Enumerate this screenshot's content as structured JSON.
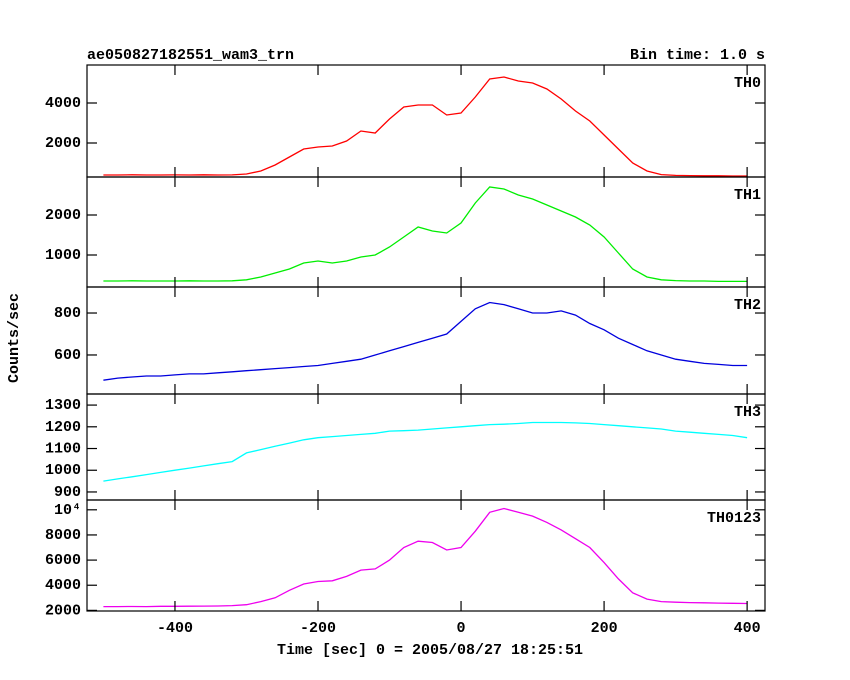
{
  "chart_data": {
    "type": "line",
    "title": "ae050827182551_wam3_trn",
    "subtitle": "Bin time: 1.0 s",
    "x_label": "Time [sec] 0 = 2005/08/27 18:25:51",
    "y_label": "Counts/sec",
    "x": [
      -500,
      -480,
      -460,
      -440,
      -420,
      -400,
      -380,
      -360,
      -340,
      -320,
      -300,
      -280,
      -260,
      -240,
      -220,
      -200,
      -180,
      -160,
      -140,
      -120,
      -100,
      -80,
      -60,
      -40,
      -20,
      0,
      20,
      40,
      60,
      80,
      100,
      120,
      140,
      160,
      180,
      200,
      220,
      240,
      260,
      280,
      300,
      320,
      340,
      360,
      380,
      400
    ],
    "xlim": [
      -523,
      425
    ],
    "xticks": [
      -400,
      -200,
      0,
      200,
      400
    ],
    "panels": [
      {
        "name": "TH0",
        "color": "#ff0000",
        "values": [
          400,
          400,
          410,
          400,
          400,
          405,
          400,
          410,
          400,
          405,
          450,
          600,
          900,
          1300,
          1700,
          1800,
          1850,
          2100,
          2600,
          2500,
          3200,
          3800,
          3900,
          3900,
          3400,
          3500,
          4300,
          5200,
          5300,
          5100,
          5000,
          4700,
          4200,
          3600,
          3100,
          2400,
          1700,
          1000,
          600,
          420,
          380,
          370,
          360,
          360,
          350,
          350
        ],
        "ylim": [
          300,
          5900
        ],
        "yticks": [
          2000,
          4000
        ]
      },
      {
        "name": "TH1",
        "color": "#00ee00",
        "values": [
          350,
          350,
          355,
          350,
          350,
          350,
          355,
          350,
          350,
          355,
          380,
          450,
          550,
          650,
          800,
          850,
          800,
          850,
          950,
          1000,
          1200,
          1450,
          1700,
          1600,
          1550,
          1800,
          2300,
          2700,
          2650,
          2500,
          2400,
          2250,
          2100,
          1950,
          1750,
          1450,
          1050,
          650,
          450,
          380,
          360,
          350,
          350,
          340,
          340,
          340
        ],
        "ylim": [
          200,
          2950
        ],
        "yticks": [
          1000,
          2000
        ]
      },
      {
        "name": "TH2",
        "color": "#0000dd",
        "values": [
          480,
          490,
          495,
          500,
          500,
          505,
          510,
          510,
          515,
          520,
          525,
          530,
          535,
          540,
          545,
          550,
          560,
          570,
          580,
          600,
          620,
          640,
          660,
          680,
          700,
          760,
          820,
          850,
          840,
          820,
          800,
          800,
          810,
          790,
          750,
          720,
          680,
          650,
          620,
          600,
          580,
          570,
          560,
          555,
          550,
          550
        ],
        "ylim": [
          414,
          924
        ],
        "yticks": [
          600,
          800
        ]
      },
      {
        "name": "TH3",
        "color": "#00ffff",
        "values": [
          950,
          960,
          970,
          980,
          990,
          1000,
          1010,
          1020,
          1030,
          1040,
          1080,
          1095,
          1110,
          1125,
          1140,
          1150,
          1155,
          1160,
          1165,
          1170,
          1180,
          1182,
          1185,
          1190,
          1195,
          1200,
          1205,
          1210,
          1212,
          1215,
          1220,
          1220,
          1220,
          1218,
          1215,
          1210,
          1205,
          1200,
          1195,
          1190,
          1180,
          1175,
          1170,
          1165,
          1160,
          1150
        ],
        "ylim": [
          863,
          1351
        ],
        "yticks": [
          900,
          1000,
          1100,
          1200,
          1300
        ]
      },
      {
        "name": "TH0123",
        "color": "#ee00ee",
        "values": [
          2300,
          2300,
          2310,
          2300,
          2320,
          2320,
          2330,
          2340,
          2350,
          2380,
          2450,
          2700,
          3000,
          3600,
          4100,
          4300,
          4350,
          4700,
          5200,
          5300,
          6000,
          7000,
          7500,
          7400,
          6800,
          7000,
          8300,
          9800,
          10100,
          9800,
          9500,
          9000,
          8400,
          7700,
          7000,
          5800,
          4500,
          3400,
          2900,
          2700,
          2650,
          2620,
          2600,
          2580,
          2560,
          2550
        ],
        "ylim": [
          1950,
          10780
        ],
        "yticks": [
          2000,
          4000,
          6000,
          8000,
          {
            "value": 10000,
            "label": "10⁴"
          }
        ]
      }
    ]
  }
}
